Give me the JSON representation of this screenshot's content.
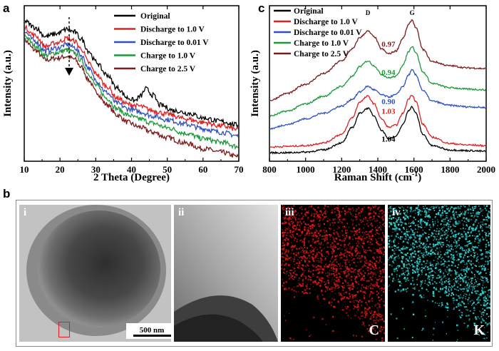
{
  "figure": {
    "panel_a_label": "a",
    "panel_b_label": "b",
    "panel_c_label": "c"
  },
  "chart_data": [
    {
      "type": "line",
      "panel": "a",
      "xlabel": "2 Theta (Degree)",
      "ylabel": "Intensity (a.u.)",
      "xlim": [
        10,
        70
      ],
      "x_ticks": [
        "10",
        "20",
        "30",
        "40",
        "50",
        "60",
        "70"
      ],
      "y_ticks_shown": false,
      "legend_placement": "top-right",
      "series": [
        {
          "name": "Original",
          "color": "#000000",
          "x": [
            10,
            13,
            16,
            19,
            22,
            24,
            26,
            28,
            30,
            33,
            36,
            39,
            41,
            42.5,
            44,
            46,
            48,
            52,
            56,
            60,
            65,
            70
          ],
          "y": [
            9.55,
            9.2,
            8.7,
            8.85,
            9.1,
            8.95,
            8.55,
            7.9,
            7.3,
            6.6,
            5.85,
            5.3,
            5.15,
            5.4,
            5.8,
            5.45,
            4.9,
            4.6,
            4.45,
            4.2,
            4.0,
            3.8
          ]
        },
        {
          "name": "Discharge to   1.0 V",
          "color": "#e02020",
          "x": [
            10,
            13,
            16,
            19,
            22,
            24,
            26,
            28,
            30,
            33,
            36,
            39,
            42,
            46,
            50,
            55,
            60,
            65,
            70
          ],
          "y": [
            9.2,
            8.75,
            8.15,
            8.35,
            8.6,
            8.45,
            8.0,
            7.25,
            6.65,
            5.95,
            5.3,
            4.95,
            4.85,
            4.6,
            4.4,
            4.15,
            3.95,
            3.75,
            3.55
          ]
        },
        {
          "name": "Discharge to 0.01 V",
          "color": "#3050c0",
          "x": [
            10,
            13,
            16,
            19,
            22,
            24,
            26,
            28,
            30,
            33,
            36,
            39,
            42,
            46,
            50,
            55,
            60,
            65,
            70
          ],
          "y": [
            8.95,
            8.45,
            7.9,
            8.05,
            8.25,
            8.1,
            7.65,
            6.95,
            6.3,
            5.6,
            5.0,
            4.7,
            4.55,
            4.3,
            4.1,
            3.85,
            3.6,
            3.4,
            3.2
          ]
        },
        {
          "name": "Charge to 1.0 V",
          "color": "#1a9a3a",
          "x": [
            10,
            13,
            16,
            19,
            22,
            24,
            26,
            28,
            30,
            33,
            36,
            39,
            42,
            46,
            50,
            55,
            60,
            65,
            70
          ],
          "y": [
            8.75,
            8.2,
            7.65,
            7.8,
            7.95,
            7.8,
            7.35,
            6.65,
            6.0,
            5.3,
            4.7,
            4.35,
            4.15,
            3.9,
            3.65,
            3.35,
            3.05,
            2.85,
            2.6
          ]
        },
        {
          "name": "Charge to 2.5 V",
          "color": "#7a1a1a",
          "x": [
            10,
            13,
            16,
            19,
            22,
            24,
            26,
            28,
            30,
            33,
            36,
            39,
            42,
            46,
            50,
            55,
            60,
            65,
            70
          ],
          "y": [
            8.5,
            7.95,
            7.4,
            7.5,
            7.6,
            7.45,
            7.0,
            6.3,
            5.65,
            4.95,
            4.35,
            3.95,
            3.7,
            3.4,
            3.1,
            2.8,
            2.5,
            2.3,
            2.05
          ]
        }
      ],
      "ylim": [
        1.8,
        10.4
      ]
    },
    {
      "type": "line",
      "panel": "c",
      "xlabel": "Raman Shift (cm",
      "xlabel_sup": "-1",
      "xlabel_close": ")",
      "ylabel": "Intensity (a.u.)",
      "xlim": [
        800,
        2000
      ],
      "x_ticks": [
        "800",
        "1000",
        "1200",
        "1400",
        "1600",
        "1800",
        "2000"
      ],
      "y_ticks_shown": false,
      "legend_placement": "top-left",
      "peak_labels": [
        "D",
        "G"
      ],
      "peak_positions": [
        1345,
        1590
      ],
      "series": [
        {
          "name": "Original",
          "color": "#000000",
          "ratio": "1.04",
          "x": [
            800,
            900,
            1000,
            1100,
            1200,
            1260,
            1300,
            1345,
            1380,
            1420,
            1460,
            1500,
            1540,
            1570,
            1590,
            1610,
            1650,
            1700,
            1800,
            1900,
            2000
          ],
          "y": [
            0.6,
            0.6,
            0.65,
            0.8,
            1.3,
            2.4,
            3.4,
            3.75,
            3.2,
            2.2,
            1.6,
            1.75,
            2.6,
            3.6,
            3.85,
            3.4,
            1.9,
            1.1,
            0.8,
            0.75,
            0.7
          ]
        },
        {
          "name": "Discharge to 1.0 V",
          "color": "#e02020",
          "ratio": "1.03",
          "x": [
            800,
            900,
            1000,
            1100,
            1200,
            1260,
            1300,
            1345,
            1380,
            1420,
            1460,
            1500,
            1540,
            1570,
            1590,
            1610,
            1650,
            1700,
            1800,
            1900,
            2000
          ],
          "y": [
            1.0,
            1.05,
            1.1,
            1.3,
            1.9,
            3.1,
            4.2,
            4.6,
            4.05,
            3.0,
            2.4,
            2.55,
            3.4,
            4.4,
            4.7,
            4.25,
            2.6,
            1.7,
            1.25,
            1.15,
            1.1
          ]
        },
        {
          "name": "Discharge to 0.01 V",
          "color": "#3050c0",
          "ratio": "0.90",
          "x": [
            800,
            900,
            1000,
            1100,
            1200,
            1260,
            1300,
            1345,
            1380,
            1420,
            1460,
            1500,
            1540,
            1570,
            1590,
            1610,
            1650,
            1700,
            1800,
            1900,
            2000
          ],
          "y": [
            2.3,
            2.6,
            3.0,
            3.4,
            3.9,
            4.4,
            4.9,
            5.3,
            5.05,
            4.7,
            4.55,
            4.7,
            5.3,
            6.1,
            6.45,
            6.1,
            5.0,
            4.25,
            3.95,
            3.85,
            3.8
          ]
        },
        {
          "name": "Charge to 1.0 V",
          "color": "#1a9a3a",
          "ratio": "0.94",
          "x": [
            800,
            900,
            1000,
            1100,
            1200,
            1260,
            1300,
            1345,
            1380,
            1420,
            1460,
            1500,
            1540,
            1570,
            1590,
            1610,
            1650,
            1700,
            1800,
            1900,
            2000
          ],
          "y": [
            3.2,
            3.55,
            4.05,
            4.6,
            5.3,
            6.0,
            6.7,
            7.1,
            6.75,
            6.15,
            5.9,
            6.0,
            6.8,
            7.75,
            8.15,
            7.7,
            6.3,
            5.5,
            5.2,
            5.1,
            5.05
          ]
        },
        {
          "name": "Charge to 2.5 V",
          "color": "#7a1a1a",
          "ratio": "0.97",
          "x": [
            800,
            900,
            1000,
            1100,
            1200,
            1260,
            1300,
            1345,
            1380,
            1420,
            1460,
            1500,
            1540,
            1570,
            1590,
            1610,
            1650,
            1700,
            1800,
            1900,
            2000
          ],
          "y": [
            4.3,
            4.8,
            5.45,
            6.2,
            7.1,
            7.95,
            8.75,
            9.2,
            8.8,
            7.95,
            7.6,
            7.8,
            8.7,
            9.65,
            10.0,
            9.45,
            7.9,
            7.05,
            6.75,
            6.6,
            6.55
          ]
        }
      ],
      "ylim": [
        0,
        11
      ]
    }
  ],
  "images": [
    {
      "tag": "i",
      "element": "",
      "scale_bar": "500 nm"
    },
    {
      "tag": "ii",
      "element": ""
    },
    {
      "tag": "iii",
      "element": "C",
      "color": "#e01818"
    },
    {
      "tag": "iv",
      "element": "K",
      "color": "#30d8d8"
    }
  ]
}
